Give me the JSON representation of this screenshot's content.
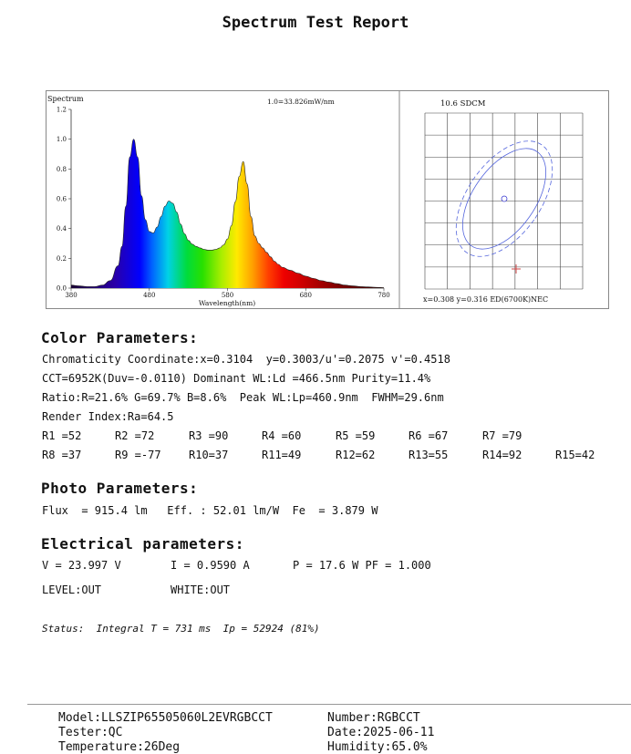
{
  "report_title": "Spectrum Test Report",
  "chart_data": [
    {
      "type": "area",
      "title": "Spectrum",
      "annotation": "1.0=33.826mW/nm",
      "xlabel": "Wavelength(nm)",
      "ylabel": "",
      "xlim": [
        380,
        780
      ],
      "ylim": [
        0,
        1.2
      ],
      "x_ticks": [
        "380",
        "480",
        "580",
        "680",
        "780"
      ],
      "y_ticks": [
        "0.0",
        "0.2",
        "0.4",
        "0.6",
        "0.8",
        "1.0",
        "1.2"
      ],
      "x": [
        380,
        390,
        400,
        410,
        420,
        430,
        440,
        445,
        450,
        455,
        460,
        465,
        470,
        475,
        480,
        485,
        490,
        495,
        500,
        505,
        510,
        515,
        520,
        525,
        530,
        535,
        540,
        545,
        550,
        555,
        560,
        565,
        570,
        575,
        580,
        585,
        590,
        595,
        600,
        605,
        610,
        615,
        620,
        625,
        630,
        635,
        640,
        645,
        650,
        660,
        670,
        680,
        690,
        700,
        710,
        720,
        730,
        740,
        750,
        760,
        770,
        780
      ],
      "y": [
        0.02,
        0.015,
        0.01,
        0.01,
        0.02,
        0.05,
        0.15,
        0.28,
        0.55,
        0.88,
        1.0,
        0.88,
        0.62,
        0.46,
        0.38,
        0.37,
        0.41,
        0.48,
        0.55,
        0.585,
        0.57,
        0.51,
        0.43,
        0.365,
        0.32,
        0.295,
        0.28,
        0.27,
        0.26,
        0.255,
        0.255,
        0.26,
        0.27,
        0.29,
        0.33,
        0.42,
        0.58,
        0.75,
        0.85,
        0.7,
        0.48,
        0.35,
        0.3,
        0.27,
        0.24,
        0.21,
        0.18,
        0.16,
        0.14,
        0.12,
        0.1,
        0.08,
        0.065,
        0.05,
        0.04,
        0.03,
        0.02,
        0.015,
        0.01,
        0.008,
        0.005,
        0.003
      ]
    },
    {
      "type": "scatter",
      "title": "10.6 SDCM",
      "readout": "x=0.308 y=0.316 ED(6700K)NEC",
      "grid": true,
      "points": [
        {
          "marker": "cross",
          "color": "#d04a4a"
        },
        {
          "marker": "circle",
          "color": "#3a3ad0"
        }
      ]
    }
  ],
  "color_params": {
    "heading": "Color Parameters:",
    "line1": "Chromaticity Coordinate:x=0.3104  y=0.3003/u'=0.2075 v'=0.4518",
    "line2": "CCT=6952K(Duv=-0.0110) Dominant WL:Ld =466.5nm Purity=11.4%",
    "line3": "Ratio:R=21.6% G=69.7% B=8.6%  Peak WL:Lp=460.9nm  FWHM=29.6nm",
    "line4": "Render Index:Ra=64.5",
    "r_values": [
      [
        "R1 =52",
        "R2 =72",
        "R3 =90",
        "R4 =60",
        "R5 =59",
        "R6 =67",
        "R7 =79"
      ],
      [
        "R8 =37",
        "R9 =-77",
        "R10=37",
        "R11=49",
        "R12=62",
        "R13=55",
        "R14=92",
        "R15=42"
      ]
    ]
  },
  "photo_params": {
    "heading": "Photo Parameters:",
    "line1": "Flux  = 915.4 lm   Eff. : 52.01 lm/W  Fe  = 3.879 W"
  },
  "electrical_params": {
    "heading": "Electrical parameters:",
    "voltage": "V = 23.997 V",
    "current": "I = 0.9590 A",
    "power": "P = 17.6 W PF = 1.000",
    "level": "LEVEL:OUT",
    "white": "WHITE:OUT"
  },
  "status": "Status:  Integral T = 731 ms  Ip = 52924 (81%)",
  "footer": {
    "model": "Model:LLSZIP65505060L2EVRGBCCT",
    "number": "Number:RGBCCT",
    "tester": "Tester:QC",
    "date": "Date:2025-06-11",
    "temperature": "Temperature:26Deg",
    "humidity": "Humidity:65.0%"
  }
}
